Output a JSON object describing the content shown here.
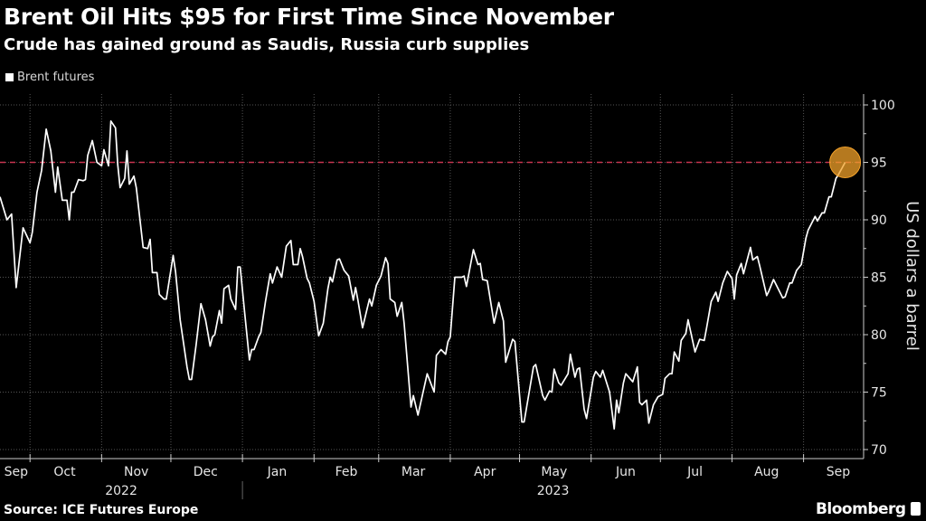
{
  "header": {
    "title": "Brent Oil Hits $95 for First Time Since November",
    "subtitle": "Crude has gained ground as Saudis, Russia curb supplies"
  },
  "footer": {
    "source": "Source: ICE Futures Europe",
    "logo": "Bloomberg"
  },
  "colors": {
    "background": "#000000",
    "line": "#ffffff",
    "reference_line": "#c8344f",
    "highlight": "#f2a12a",
    "grid": "#555555"
  },
  "chart_data": {
    "type": "line",
    "title": "Brent Oil Hits $95 for First Time Since November",
    "subtitle": "Crude has gained ground as Saudis, Russia curb supplies",
    "xlabel": "",
    "ylabel": "US dollars a barrel",
    "x_unit": "days since 2022-09-01",
    "xlim": [
      17,
      391
    ],
    "ylim": [
      70,
      100
    ],
    "yticks": [
      "100",
      "95",
      "90",
      "85",
      "80",
      "75",
      "70"
    ],
    "ytick_values": [
      100,
      95,
      90,
      85,
      80,
      75,
      70
    ],
    "grid": true,
    "legend": {
      "position": "top-left",
      "entries": [
        "Brent futures"
      ]
    },
    "reference_line": {
      "y": 95,
      "style": "dashed"
    },
    "highlight_point": {
      "x": 383,
      "y": 95
    },
    "month_ticks": [
      {
        "label": "Sep",
        "start": 0,
        "center": 24
      },
      {
        "label": "Oct",
        "start": 30,
        "center": 45
      },
      {
        "label": "Nov",
        "start": 61,
        "center": 76
      },
      {
        "label": "Dec",
        "start": 91,
        "center": 106
      },
      {
        "label": "Jan",
        "start": 122,
        "center": 137
      },
      {
        "label": "Feb",
        "start": 153,
        "center": 167
      },
      {
        "label": "Mar",
        "start": 181,
        "center": 196
      },
      {
        "label": "Apr",
        "start": 212,
        "center": 227
      },
      {
        "label": "May",
        "start": 242,
        "center": 257
      },
      {
        "label": "Jun",
        "start": 273,
        "center": 288
      },
      {
        "label": "Jul",
        "start": 303,
        "center": 318
      },
      {
        "label": "Aug",
        "start": 334,
        "center": 349
      },
      {
        "label": "Sep",
        "start": 365,
        "center": 380
      }
    ],
    "years": [
      {
        "label": "2022",
        "from": 17,
        "to": 122
      },
      {
        "label": "2023",
        "from": 122,
        "to": 391
      }
    ],
    "series": [
      {
        "name": "Brent futures",
        "points": [
          [
            17,
            92.0
          ],
          [
            20,
            90.0
          ],
          [
            22,
            90.5
          ],
          [
            24,
            84.1
          ],
          [
            27,
            89.3
          ],
          [
            30,
            88.0
          ],
          [
            31,
            88.9
          ],
          [
            33,
            92.4
          ],
          [
            35,
            94.3
          ],
          [
            37,
            97.9
          ],
          [
            39,
            96.0
          ],
          [
            41,
            92.4
          ],
          [
            42,
            94.6
          ],
          [
            44,
            91.7
          ],
          [
            46,
            91.7
          ],
          [
            47,
            90.0
          ],
          [
            48,
            92.4
          ],
          [
            49,
            92.4
          ],
          [
            51,
            93.5
          ],
          [
            53,
            93.4
          ],
          [
            54,
            93.5
          ],
          [
            55,
            95.6
          ],
          [
            57,
            96.9
          ],
          [
            59,
            95.0
          ],
          [
            61,
            94.7
          ],
          [
            62,
            96.1
          ],
          [
            64,
            94.7
          ],
          [
            65,
            98.6
          ],
          [
            67,
            98.0
          ],
          [
            68,
            94.8
          ],
          [
            69,
            92.8
          ],
          [
            71,
            93.6
          ],
          [
            72,
            96.0
          ],
          [
            73,
            93.1
          ],
          [
            75,
            93.8
          ],
          [
            76,
            92.8
          ],
          [
            79,
            87.6
          ],
          [
            81,
            87.5
          ],
          [
            82,
            88.3
          ],
          [
            83,
            85.4
          ],
          [
            85,
            85.4
          ],
          [
            86,
            83.5
          ],
          [
            88,
            83.1
          ],
          [
            89,
            83.1
          ],
          [
            92,
            86.9
          ],
          [
            93,
            85.5
          ],
          [
            95,
            81.3
          ],
          [
            98,
            77.2
          ],
          [
            99,
            76.1
          ],
          [
            100,
            76.1
          ],
          [
            102,
            79.2
          ],
          [
            104,
            82.7
          ],
          [
            106,
            81.3
          ],
          [
            108,
            79.0
          ],
          [
            109,
            79.8
          ],
          [
            110,
            80.0
          ],
          [
            112,
            82.1
          ],
          [
            113,
            81.0
          ],
          [
            114,
            84.0
          ],
          [
            116,
            84.3
          ],
          [
            117,
            83.1
          ],
          [
            119,
            82.2
          ],
          [
            120,
            85.9
          ],
          [
            121,
            85.9
          ],
          [
            123,
            81.8
          ],
          [
            125,
            77.8
          ],
          [
            126,
            78.7
          ],
          [
            127,
            78.7
          ],
          [
            129,
            79.8
          ],
          [
            130,
            80.2
          ],
          [
            132,
            82.9
          ],
          [
            134,
            85.3
          ],
          [
            135,
            84.5
          ],
          [
            137,
            85.9
          ],
          [
            139,
            85.0
          ],
          [
            141,
            87.7
          ],
          [
            143,
            88.2
          ],
          [
            144,
            86.1
          ],
          [
            146,
            86.1
          ],
          [
            147,
            87.5
          ],
          [
            148,
            86.8
          ],
          [
            150,
            84.9
          ],
          [
            151,
            84.5
          ],
          [
            153,
            82.9
          ],
          [
            155,
            79.9
          ],
          [
            157,
            81.0
          ],
          [
            159,
            84.0
          ],
          [
            160,
            85.0
          ],
          [
            161,
            84.6
          ],
          [
            163,
            86.5
          ],
          [
            164,
            86.6
          ],
          [
            166,
            85.6
          ],
          [
            168,
            85.1
          ],
          [
            170,
            83.0
          ],
          [
            171,
            84.1
          ],
          [
            172,
            83.0
          ],
          [
            174,
            80.6
          ],
          [
            177,
            83.1
          ],
          [
            178,
            82.5
          ],
          [
            180,
            84.3
          ],
          [
            182,
            85.1
          ],
          [
            184,
            86.7
          ],
          [
            185,
            86.2
          ],
          [
            186,
            83.1
          ],
          [
            188,
            82.8
          ],
          [
            189,
            81.6
          ],
          [
            191,
            82.8
          ],
          [
            192,
            81.0
          ],
          [
            195,
            73.7
          ],
          [
            196,
            74.7
          ],
          [
            198,
            73.0
          ],
          [
            202,
            76.6
          ],
          [
            205,
            75.0
          ],
          [
            206,
            78.2
          ],
          [
            208,
            78.7
          ],
          [
            210,
            78.3
          ],
          [
            211,
            79.4
          ],
          [
            212,
            79.8
          ],
          [
            214,
            85.0
          ],
          [
            217,
            85.0
          ],
          [
            218,
            85.1
          ],
          [
            219,
            84.2
          ],
          [
            222,
            87.4
          ],
          [
            224,
            86.1
          ],
          [
            225,
            86.2
          ],
          [
            226,
            84.8
          ],
          [
            228,
            84.7
          ],
          [
            231,
            81.0
          ],
          [
            233,
            82.8
          ],
          [
            235,
            81.2
          ],
          [
            236,
            77.6
          ],
          [
            239,
            79.6
          ],
          [
            240,
            79.4
          ],
          [
            243,
            72.4
          ],
          [
            244,
            72.4
          ],
          [
            248,
            77.2
          ],
          [
            249,
            77.4
          ],
          [
            252,
            74.7
          ],
          [
            253,
            74.3
          ],
          [
            255,
            75.1
          ],
          [
            256,
            75.0
          ],
          [
            257,
            77.0
          ],
          [
            259,
            75.8
          ],
          [
            260,
            75.6
          ],
          [
            263,
            76.6
          ],
          [
            264,
            78.3
          ],
          [
            266,
            76.3
          ],
          [
            267,
            77.0
          ],
          [
            268,
            77.1
          ],
          [
            270,
            73.5
          ],
          [
            271,
            72.7
          ],
          [
            274,
            76.3
          ],
          [
            275,
            76.8
          ],
          [
            277,
            76.3
          ],
          [
            278,
            76.9
          ],
          [
            281,
            75.0
          ],
          [
            283,
            71.8
          ],
          [
            284,
            74.3
          ],
          [
            285,
            73.2
          ],
          [
            287,
            75.8
          ],
          [
            288,
            76.6
          ],
          [
            291,
            75.9
          ],
          [
            293,
            77.2
          ],
          [
            294,
            74.1
          ],
          [
            295,
            73.9
          ],
          [
            297,
            74.3
          ],
          [
            298,
            72.3
          ],
          [
            300,
            73.9
          ],
          [
            302,
            74.6
          ],
          [
            304,
            74.8
          ],
          [
            305,
            76.2
          ],
          [
            307,
            76.6
          ],
          [
            308,
            76.6
          ],
          [
            309,
            78.5
          ],
          [
            311,
            77.7
          ],
          [
            312,
            79.5
          ],
          [
            314,
            80.1
          ],
          [
            315,
            81.3
          ],
          [
            318,
            78.5
          ],
          [
            320,
            79.6
          ],
          [
            322,
            79.5
          ],
          [
            323,
            80.6
          ],
          [
            325,
            82.9
          ],
          [
            327,
            83.7
          ],
          [
            328,
            82.9
          ],
          [
            330,
            84.5
          ],
          [
            332,
            85.5
          ],
          [
            334,
            84.9
          ],
          [
            335,
            83.1
          ],
          [
            336,
            85.2
          ],
          [
            338,
            86.2
          ],
          [
            339,
            85.3
          ],
          [
            342,
            87.6
          ],
          [
            343,
            86.5
          ],
          [
            345,
            86.8
          ],
          [
            346,
            86.0
          ],
          [
            349,
            83.4
          ],
          [
            350,
            83.8
          ],
          [
            352,
            84.8
          ],
          [
            356,
            83.2
          ],
          [
            357,
            83.3
          ],
          [
            359,
            84.5
          ],
          [
            360,
            84.5
          ],
          [
            362,
            85.6
          ],
          [
            364,
            86.1
          ],
          [
            366,
            88.4
          ],
          [
            367,
            89.1
          ],
          [
            370,
            90.3
          ],
          [
            371,
            89.9
          ],
          [
            373,
            90.6
          ],
          [
            374,
            90.6
          ],
          [
            376,
            92.0
          ],
          [
            377,
            92.0
          ],
          [
            379,
            93.6
          ],
          [
            380,
            93.9
          ],
          [
            383,
            95.0
          ]
        ]
      }
    ]
  }
}
